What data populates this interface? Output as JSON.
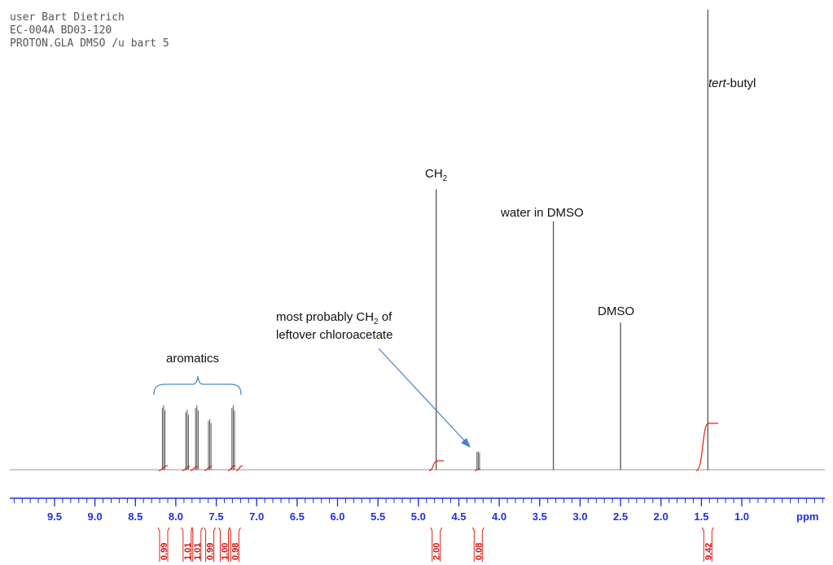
{
  "header": {
    "line1": "user Bart Dietrich",
    "line2": "EC-004A BD03-120",
    "line3": "PROTON.GLA DMSO /u bart 5"
  },
  "chart_data": {
    "type": "line",
    "x_unit": "ppm",
    "xlim": [
      10.0,
      0.0
    ],
    "x_reversed": true,
    "ticks": [
      "9.5",
      "9.0",
      "8.5",
      "8.0",
      "7.5",
      "7.0",
      "6.5",
      "6.0",
      "5.5",
      "5.0",
      "4.5",
      "4.0",
      "3.5",
      "3.0",
      "2.5",
      "2.0",
      "1.5",
      "1.0"
    ],
    "tick_values": [
      9.5,
      9.0,
      8.5,
      8.0,
      7.5,
      7.0,
      6.5,
      6.0,
      5.5,
      5.0,
      4.5,
      4.0,
      3.5,
      3.0,
      2.5,
      2.0,
      1.5,
      1.0
    ],
    "axis_label": "ppm",
    "peaks": [
      {
        "ppm": 8.15,
        "height": 0.14
      },
      {
        "ppm": 7.86,
        "height": 0.13
      },
      {
        "ppm": 7.74,
        "height": 0.14
      },
      {
        "ppm": 7.58,
        "height": 0.11
      },
      {
        "ppm": 7.29,
        "height": 0.14
      },
      {
        "ppm": 4.78,
        "height": 0.61
      },
      {
        "ppm": 4.26,
        "height": 0.04
      },
      {
        "ppm": 3.33,
        "height": 0.54
      },
      {
        "ppm": 2.5,
        "height": 0.32
      },
      {
        "ppm": 1.42,
        "height": 1.0
      }
    ],
    "integrals": [
      {
        "ppm": 8.15,
        "value": "0.99"
      },
      {
        "ppm": 7.86,
        "value": "1.01"
      },
      {
        "ppm": 7.74,
        "value": "1.01"
      },
      {
        "ppm": 7.58,
        "value": "0.99"
      },
      {
        "ppm": 7.4,
        "value": "1.00"
      },
      {
        "ppm": 7.27,
        "value": "0.98"
      },
      {
        "ppm": 4.78,
        "value": "2.00"
      },
      {
        "ppm": 4.26,
        "value": "0.08"
      },
      {
        "ppm": 1.42,
        "value": "9.42"
      }
    ],
    "annotations": {
      "tert_butyl_prefix": "tert",
      "tert_butyl_suffix": "-butyl",
      "ch2_main": "CH",
      "ch2_sub": "2",
      "water": "water in DMSO",
      "dmso": "DMSO",
      "aromatics": "aromatics",
      "chloro_line1_a": "most probably CH",
      "chloro_line1_sub": "2",
      "chloro_line1_b": " of",
      "chloro_line2": "leftover chloroacetate"
    }
  },
  "colors": {
    "spectrum": "#555555",
    "axis": "#1f2fe0",
    "integral": "#e02010",
    "brace": "#4a8fc8",
    "arrow": "#4a7fc8"
  }
}
